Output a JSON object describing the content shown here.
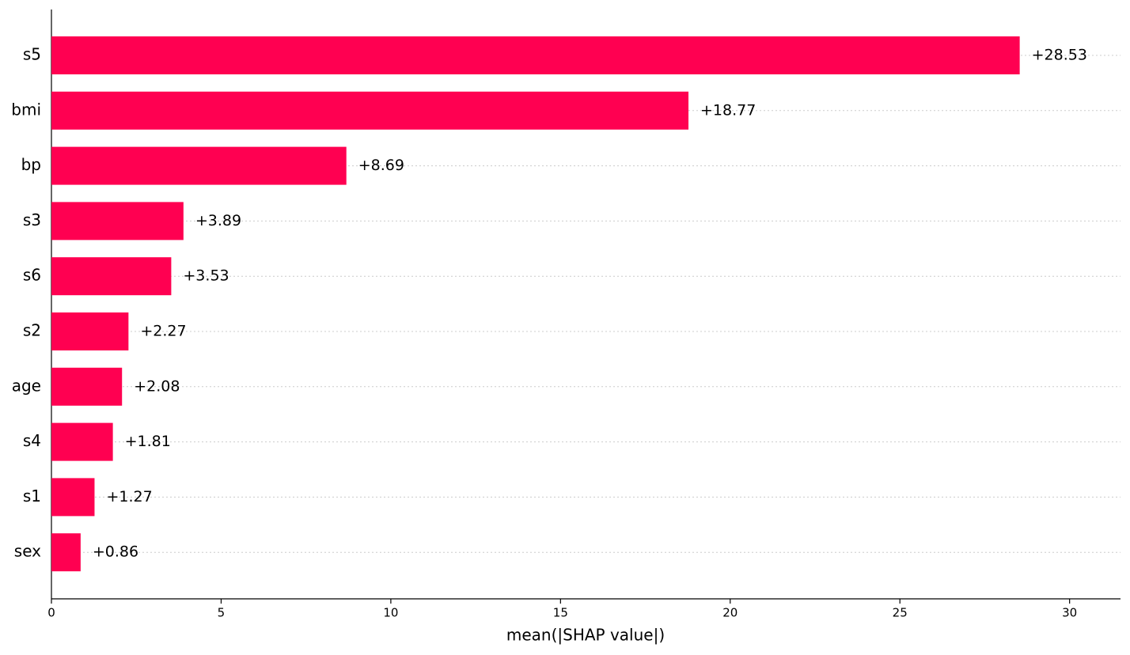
{
  "chart_data": {
    "type": "barh",
    "categories": [
      "s5",
      "bmi",
      "bp",
      "s3",
      "s6",
      "s2",
      "age",
      "s4",
      "s1",
      "sex"
    ],
    "values": [
      28.53,
      18.77,
      8.69,
      3.89,
      3.53,
      2.27,
      2.08,
      1.81,
      1.27,
      0.86
    ],
    "value_labels": [
      "+28.53",
      "+18.77",
      "+8.69",
      "+3.89",
      "+3.53",
      "+2.27",
      "+2.08",
      "+1.81",
      "+1.27",
      "+0.86"
    ],
    "color": "#ff0051",
    "xlabel": "mean(|SHAP value|)",
    "xlim": [
      0,
      31.5
    ],
    "xticks": [
      0,
      5,
      10,
      15,
      20,
      25,
      30
    ]
  }
}
